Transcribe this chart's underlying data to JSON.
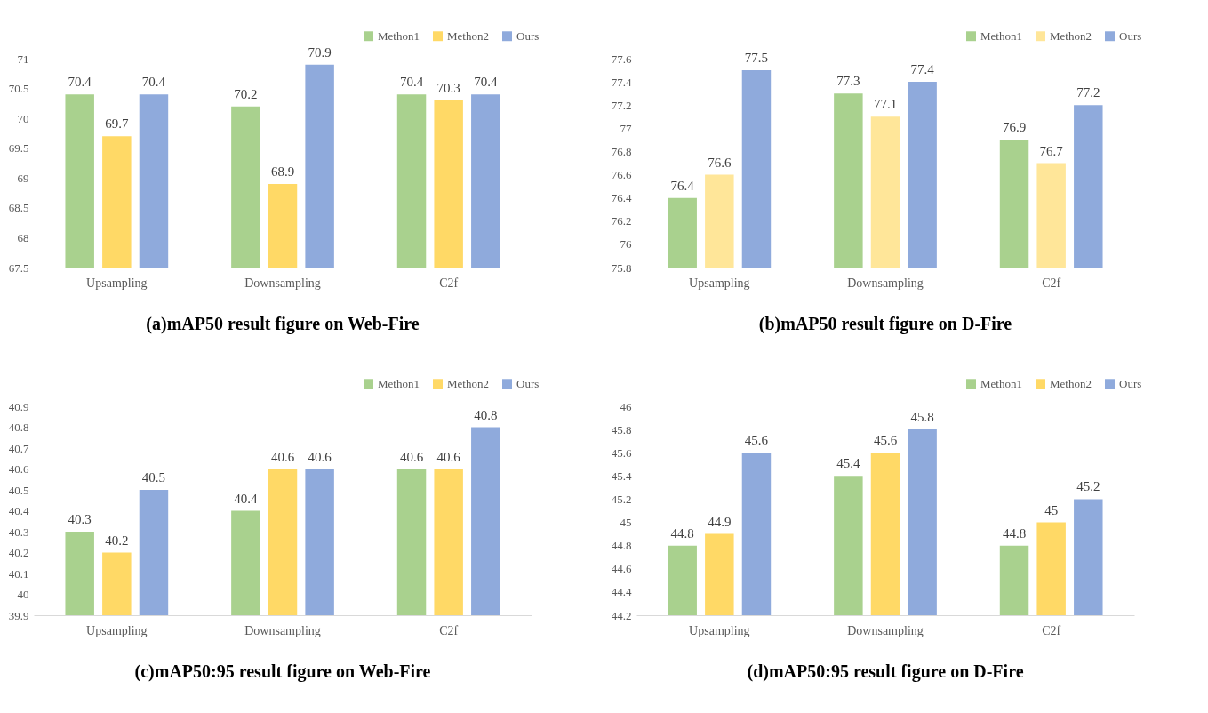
{
  "chart_data": [
    {
      "type": "bar",
      "title": "(a)mAP50 result figure on Web-Fire",
      "categories": [
        "Upsampling",
        "Downsampling",
        "C2f"
      ],
      "series": [
        {
          "name": "Methon1",
          "color": "#a9d18e",
          "values": [
            70.4,
            70.2,
            70.4
          ]
        },
        {
          "name": "Methon2",
          "color": "#ffd966",
          "values": [
            69.7,
            68.9,
            70.3
          ]
        },
        {
          "name": "Ours",
          "color": "#8faadc",
          "values": [
            70.4,
            70.9,
            70.4
          ]
        }
      ],
      "ylim": [
        67.5,
        71
      ],
      "yticks": [
        67.5,
        68,
        68.5,
        69,
        69.5,
        70,
        70.5,
        71
      ],
      "data_labels": true,
      "legend": "top right",
      "grid": false
    },
    {
      "type": "bar",
      "title": "(b)mAP50 result figure on D-Fire",
      "categories": [
        "Upsampling",
        "Downsampling",
        "C2f"
      ],
      "series": [
        {
          "name": "Methon1",
          "color": "#a9d18e",
          "values": [
            76.4,
            77.3,
            76.9
          ]
        },
        {
          "name": "Methon2",
          "color": "#ffe699",
          "values": [
            76.6,
            77.1,
            76.7
          ]
        },
        {
          "name": "Ours",
          "color": "#8faadc",
          "values": [
            77.5,
            77.4,
            77.2
          ]
        }
      ],
      "ylim": [
        75.8,
        77.6
      ],
      "yticks": [
        75.8,
        76,
        76.2,
        76.4,
        76.6,
        76.8,
        77,
        77.2,
        77.4,
        77.6
      ],
      "data_labels": true,
      "legend": "top right",
      "grid": false
    },
    {
      "type": "bar",
      "title": "(c)mAP50:95 result figure on Web-Fire",
      "categories": [
        "Upsampling",
        "Downsampling",
        "C2f"
      ],
      "series": [
        {
          "name": "Methon1",
          "color": "#a9d18e",
          "values": [
            40.3,
            40.4,
            40.6
          ]
        },
        {
          "name": "Methon2",
          "color": "#ffd966",
          "values": [
            40.2,
            40.6,
            40.6
          ]
        },
        {
          "name": "Ours",
          "color": "#8faadc",
          "values": [
            40.5,
            40.6,
            40.8
          ]
        }
      ],
      "ylim": [
        39.9,
        40.9
      ],
      "yticks": [
        39.9,
        40,
        40.1,
        40.2,
        40.3,
        40.4,
        40.5,
        40.6,
        40.7,
        40.8,
        40.9
      ],
      "data_labels": true,
      "legend": "top right",
      "grid": false
    },
    {
      "type": "bar",
      "title": "(d)mAP50:95 result figure on D-Fire",
      "categories": [
        "Upsampling",
        "Downsampling",
        "C2f"
      ],
      "series": [
        {
          "name": "Methon1",
          "color": "#a9d18e",
          "values": [
            44.8,
            45.4,
            44.8
          ]
        },
        {
          "name": "Methon2",
          "color": "#ffd966",
          "values": [
            44.9,
            45.6,
            45
          ]
        },
        {
          "name": "Ours",
          "color": "#8faadc",
          "values": [
            45.6,
            45.8,
            45.2
          ]
        }
      ],
      "ylim": [
        44.2,
        46
      ],
      "yticks": [
        44.2,
        44.4,
        44.6,
        44.8,
        45,
        45.2,
        45.4,
        45.6,
        45.8,
        46
      ],
      "data_labels": true,
      "legend": "top right",
      "grid": false
    }
  ]
}
